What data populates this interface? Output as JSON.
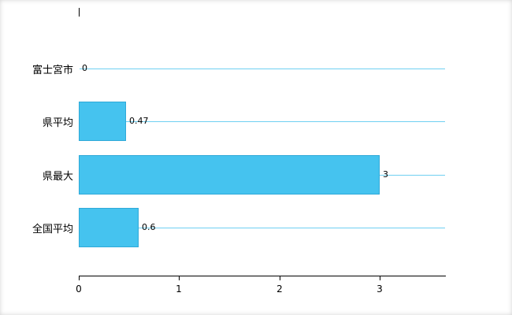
{
  "chart_data": {
    "type": "bar",
    "orientation": "horizontal",
    "title": "",
    "categories": [
      "富士宮市",
      "県平均",
      "県最大",
      "全国平均"
    ],
    "values": [
      0,
      0.47,
      3,
      0.6
    ],
    "value_labels": [
      "0",
      "0.47",
      "3",
      "0.6"
    ],
    "x_ticks": [
      0,
      1,
      2,
      3
    ],
    "x_tick_labels": [
      "0",
      "1",
      "2",
      "3"
    ],
    "xlim": [
      0,
      3.65
    ],
    "grid": "category-lines",
    "legend": "none",
    "bar_color": "#45c3ef",
    "bar_border_color": "#2fa9d8",
    "gridline_color": "#6fd0f2",
    "axis_color": "#000000",
    "background": "#ffffff"
  }
}
